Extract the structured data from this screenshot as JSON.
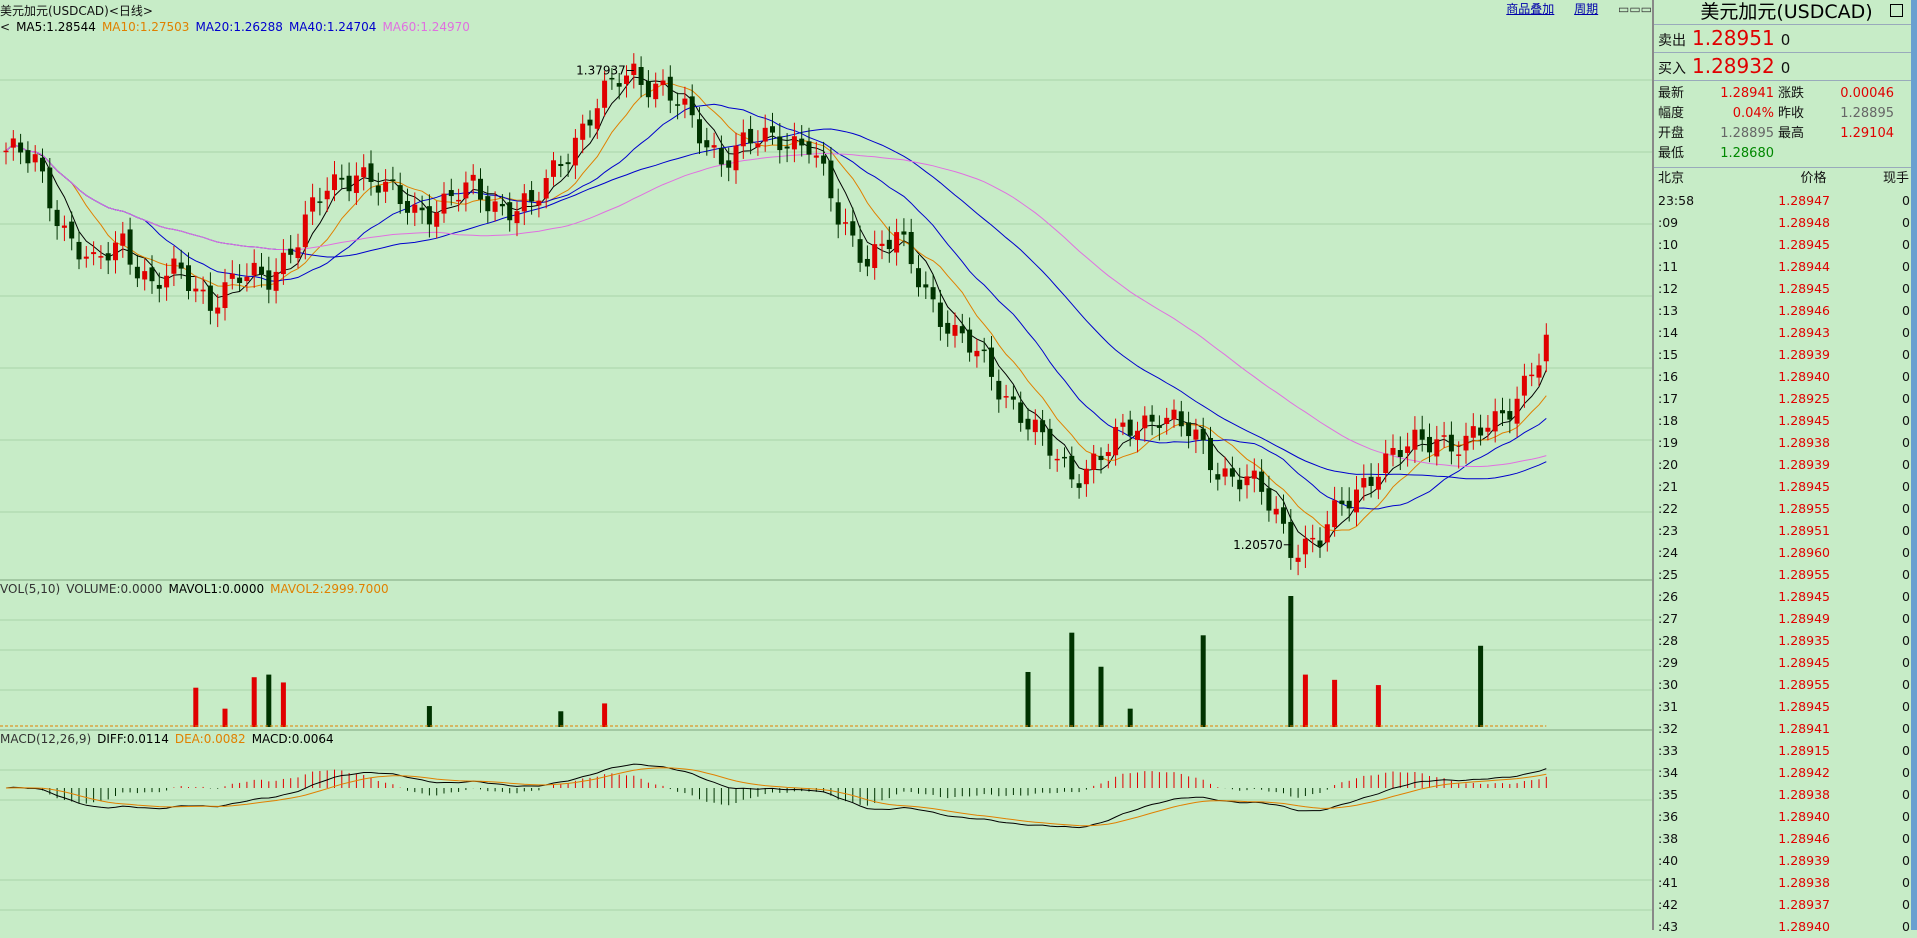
{
  "header": {
    "title": "美元加元(USDCAD)<日线>",
    "tools": [
      "商品叠加",
      "周期"
    ]
  },
  "indicators": {
    "ma_prefix": "<",
    "ma": [
      {
        "label": "MA5:1.28544",
        "color": "#000000"
      },
      {
        "label": "MA10:1.27503",
        "color": "#e08000"
      },
      {
        "label": "MA20:1.26288",
        "color": "#0000cc"
      },
      {
        "label": "MA40:1.24704",
        "color": "#0000cc"
      },
      {
        "label": "MA60:1.24970",
        "color": "#e070e0"
      }
    ],
    "vol": [
      {
        "label": "VOL(5,10)",
        "color": "#333333"
      },
      {
        "label": "VOLUME:0.0000",
        "color": "#333333"
      },
      {
        "label": "MAVOL1:0.0000",
        "color": "#000000"
      },
      {
        "label": "MAVOL2:2999.7000",
        "color": "#e08000"
      }
    ],
    "macd": [
      {
        "label": "MACD(12,26,9)",
        "color": "#333333"
      },
      {
        "label": "DIFF:0.0114",
        "color": "#000000"
      },
      {
        "label": "DEA:0.0082",
        "color": "#e08000"
      },
      {
        "label": "MACD:0.0064",
        "color": "#000000"
      }
    ]
  },
  "chart_data": {
    "type": "candlestick",
    "symbol": "USDCAD",
    "period": "日线",
    "annotations": {
      "high": 1.37937,
      "low": 1.2057
    },
    "y_range": [
      1.195,
      1.392
    ],
    "close_anchors": [
      [
        0,
        1.35
      ],
      [
        4,
        1.345
      ],
      [
        8,
        1.322
      ],
      [
        12,
        1.306
      ],
      [
        16,
        1.318
      ],
      [
        20,
        1.3
      ],
      [
        24,
        1.305
      ],
      [
        28,
        1.296
      ],
      [
        32,
        1.302
      ],
      [
        36,
        1.305
      ],
      [
        40,
        1.318
      ],
      [
        44,
        1.336
      ],
      [
        48,
        1.344
      ],
      [
        52,
        1.334
      ],
      [
        56,
        1.329
      ],
      [
        60,
        1.33
      ],
      [
        64,
        1.336
      ],
      [
        68,
        1.33
      ],
      [
        72,
        1.328
      ],
      [
        76,
        1.348
      ],
      [
        80,
        1.362
      ],
      [
        84,
        1.376
      ],
      [
        86,
        1.38
      ],
      [
        90,
        1.372
      ],
      [
        94,
        1.36
      ],
      [
        98,
        1.348
      ],
      [
        102,
        1.352
      ],
      [
        106,
        1.356
      ],
      [
        110,
        1.352
      ],
      [
        114,
        1.325
      ],
      [
        118,
        1.312
      ],
      [
        122,
        1.317
      ],
      [
        126,
        1.3
      ],
      [
        130,
        1.282
      ],
      [
        134,
        1.272
      ],
      [
        138,
        1.258
      ],
      [
        142,
        1.242
      ],
      [
        146,
        1.232
      ],
      [
        150,
        1.238
      ],
      [
        154,
        1.248
      ],
      [
        158,
        1.255
      ],
      [
        162,
        1.246
      ],
      [
        166,
        1.234
      ],
      [
        170,
        1.23
      ],
      [
        174,
        1.216
      ],
      [
        176,
        1.206
      ],
      [
        180,
        1.208
      ],
      [
        184,
        1.222
      ],
      [
        188,
        1.236
      ],
      [
        192,
        1.24
      ],
      [
        196,
        1.246
      ],
      [
        200,
        1.242
      ],
      [
        204,
        1.25
      ],
      [
        208,
        1.266
      ],
      [
        211,
        1.278
      ]
    ],
    "ma5_last": 1.28544,
    "ma10_last": 1.27503,
    "ma20_last": 1.26288,
    "ma40_last": 1.24704,
    "ma60_last": 1.2497,
    "volume_spikes": [
      [
        26,
        30
      ],
      [
        30,
        14
      ],
      [
        34,
        38
      ],
      [
        36,
        40
      ],
      [
        38,
        34
      ],
      [
        58,
        16
      ],
      [
        76,
        12
      ],
      [
        82,
        18
      ],
      [
        140,
        42
      ],
      [
        146,
        72
      ],
      [
        150,
        46
      ],
      [
        154,
        14
      ],
      [
        164,
        70
      ],
      [
        176,
        100
      ],
      [
        178,
        40
      ],
      [
        182,
        36
      ],
      [
        188,
        32
      ],
      [
        202,
        62
      ]
    ]
  },
  "quote_panel": {
    "title": "美元加元(USDCAD)",
    "sell_label": "卖出",
    "sell_price": "1.28951",
    "sell_qty": "0",
    "buy_label": "买入",
    "buy_price": "1.28932",
    "buy_qty": "0",
    "stats": [
      {
        "l": "最新",
        "v": "1.28941",
        "c": "red"
      },
      {
        "l": "涨跌",
        "v": "0.00046",
        "c": "red"
      },
      {
        "l": "幅度",
        "v": "0.04%",
        "c": "red"
      },
      {
        "l": "昨收",
        "v": "1.28895",
        "c": "gray"
      },
      {
        "l": "开盘",
        "v": "1.28895",
        "c": "gray"
      },
      {
        "l": "最高",
        "v": "1.29104",
        "c": "red"
      },
      {
        "l": "最低",
        "v": "1.28680",
        "c": "green"
      },
      {
        "l": "",
        "v": "",
        "c": "gray"
      }
    ],
    "tick_header": {
      "time": "北京",
      "price": "价格",
      "qty": "现手"
    },
    "ticks": [
      {
        "t": "23:58",
        "p": "1.28947",
        "q": "0"
      },
      {
        "t": ":09",
        "p": "1.28948",
        "q": "0"
      },
      {
        "t": ":10",
        "p": "1.28945",
        "q": "0"
      },
      {
        "t": ":11",
        "p": "1.28944",
        "q": "0"
      },
      {
        "t": ":12",
        "p": "1.28945",
        "q": "0"
      },
      {
        "t": ":13",
        "p": "1.28946",
        "q": "0"
      },
      {
        "t": ":14",
        "p": "1.28943",
        "q": "0"
      },
      {
        "t": ":15",
        "p": "1.28939",
        "q": "0"
      },
      {
        "t": ":16",
        "p": "1.28940",
        "q": "0"
      },
      {
        "t": ":17",
        "p": "1.28925",
        "q": "0"
      },
      {
        "t": ":18",
        "p": "1.28945",
        "q": "0"
      },
      {
        "t": ":19",
        "p": "1.28938",
        "q": "0"
      },
      {
        "t": ":20",
        "p": "1.28939",
        "q": "0"
      },
      {
        "t": ":21",
        "p": "1.28945",
        "q": "0"
      },
      {
        "t": ":22",
        "p": "1.28955",
        "q": "0"
      },
      {
        "t": ":23",
        "p": "1.28951",
        "q": "0"
      },
      {
        "t": ":24",
        "p": "1.28960",
        "q": "0"
      },
      {
        "t": ":25",
        "p": "1.28955",
        "q": "0"
      },
      {
        "t": ":26",
        "p": "1.28945",
        "q": "0"
      },
      {
        "t": ":27",
        "p": "1.28949",
        "q": "0"
      },
      {
        "t": ":28",
        "p": "1.28935",
        "q": "0"
      },
      {
        "t": ":29",
        "p": "1.28945",
        "q": "0"
      },
      {
        "t": ":30",
        "p": "1.28955",
        "q": "0"
      },
      {
        "t": ":31",
        "p": "1.28945",
        "q": "0"
      },
      {
        "t": ":32",
        "p": "1.28941",
        "q": "0"
      },
      {
        "t": ":33",
        "p": "1.28915",
        "q": "0"
      },
      {
        "t": ":34",
        "p": "1.28942",
        "q": "0"
      },
      {
        "t": ":35",
        "p": "1.28938",
        "q": "0"
      },
      {
        "t": ":36",
        "p": "1.28940",
        "q": "0"
      },
      {
        "t": ":38",
        "p": "1.28946",
        "q": "0"
      },
      {
        "t": ":40",
        "p": "1.28939",
        "q": "0"
      },
      {
        "t": ":41",
        "p": "1.28938",
        "q": "0"
      },
      {
        "t": ":42",
        "p": "1.28937",
        "q": "0"
      },
      {
        "t": ":43",
        "p": "1.28940",
        "q": "0"
      }
    ]
  },
  "colors": {
    "bg": "#c7ecc7",
    "up": "#e00000",
    "down": "#003300",
    "ma5": "#000000",
    "ma10": "#e08000",
    "ma20": "#0000cc",
    "ma40": "#0000cc",
    "ma60": "#e070e0"
  }
}
